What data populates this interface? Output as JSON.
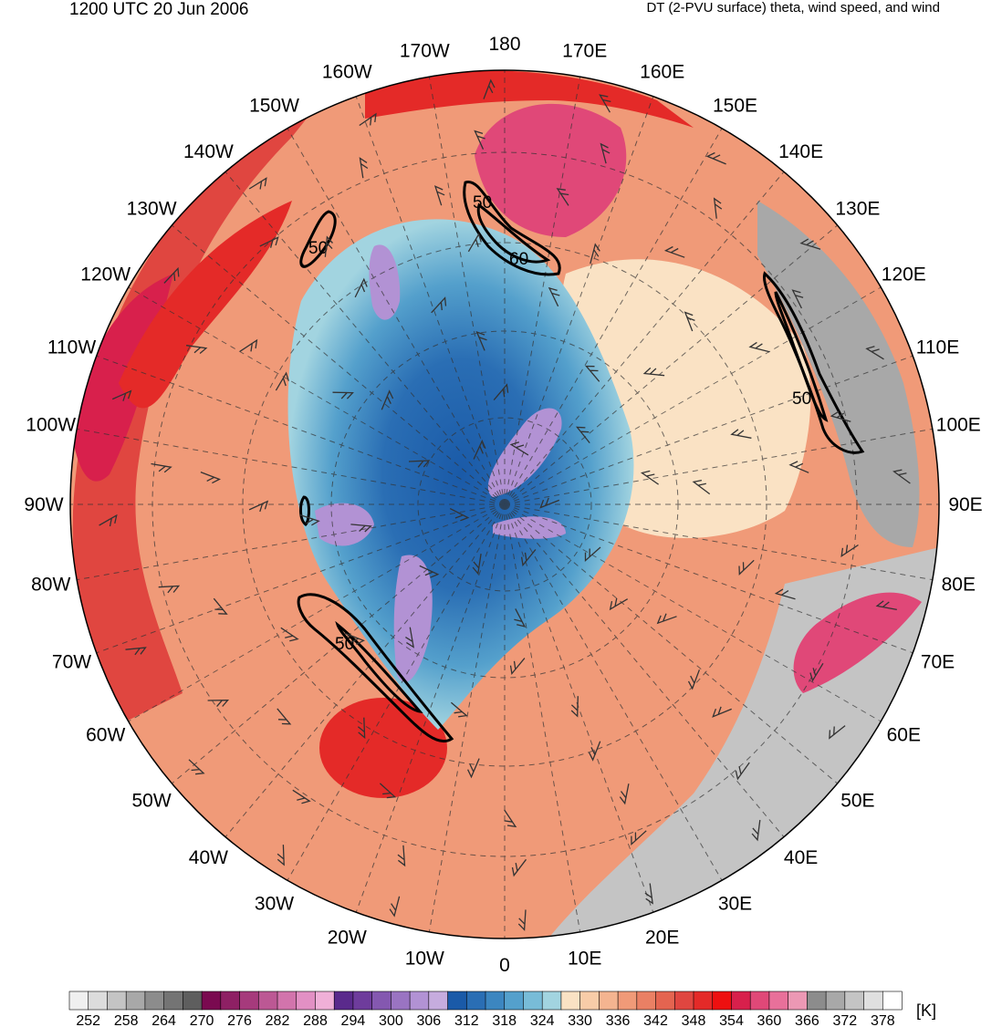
{
  "header": {
    "valid_time": "1200 UTC 20 Jun 2006",
    "field_description": "DT (2-PVU surface) theta, wind speed, and wind"
  },
  "map": {
    "projection": "north-polar-stereographic",
    "longitude_labels": [
      {
        "lon": 180,
        "text": "180"
      },
      {
        "lon": 170,
        "text": "170E"
      },
      {
        "lon": 160,
        "text": "160E"
      },
      {
        "lon": 150,
        "text": "150E"
      },
      {
        "lon": 140,
        "text": "140E"
      },
      {
        "lon": 130,
        "text": "130E"
      },
      {
        "lon": 120,
        "text": "120E"
      },
      {
        "lon": 110,
        "text": "110E"
      },
      {
        "lon": 100,
        "text": "100E"
      },
      {
        "lon": 90,
        "text": "90E"
      },
      {
        "lon": 80,
        "text": "80E"
      },
      {
        "lon": 70,
        "text": "70E"
      },
      {
        "lon": 60,
        "text": "60E"
      },
      {
        "lon": 50,
        "text": "50E"
      },
      {
        "lon": 40,
        "text": "40E"
      },
      {
        "lon": 30,
        "text": "30E"
      },
      {
        "lon": 20,
        "text": "20E"
      },
      {
        "lon": 10,
        "text": "10E"
      },
      {
        "lon": 0,
        "text": "0"
      },
      {
        "lon": -10,
        "text": "10W"
      },
      {
        "lon": -20,
        "text": "20W"
      },
      {
        "lon": -30,
        "text": "30W"
      },
      {
        "lon": -40,
        "text": "40W"
      },
      {
        "lon": -50,
        "text": "50W"
      },
      {
        "lon": -60,
        "text": "60W"
      },
      {
        "lon": -70,
        "text": "70W"
      },
      {
        "lon": -80,
        "text": "80W"
      },
      {
        "lon": -90,
        "text": "90W"
      },
      {
        "lon": -100,
        "text": "100W"
      },
      {
        "lon": -110,
        "text": "110W"
      },
      {
        "lon": -120,
        "text": "120W"
      },
      {
        "lon": -130,
        "text": "130W"
      },
      {
        "lon": -140,
        "text": "140W"
      },
      {
        "lon": -150,
        "text": "150W"
      },
      {
        "lon": -160,
        "text": "160W"
      },
      {
        "lon": -170,
        "text": "170W"
      }
    ],
    "wind_speed_contour_labels": [
      "50",
      "50",
      "60",
      "50",
      "50"
    ]
  },
  "colorbar": {
    "unit": "[K]",
    "levels": [
      252,
      255,
      258,
      261,
      264,
      267,
      270,
      273,
      276,
      279,
      282,
      285,
      288,
      291,
      294,
      297,
      300,
      303,
      306,
      309,
      312,
      315,
      318,
      321,
      324,
      327,
      330,
      333,
      336,
      339,
      342,
      345,
      348,
      351,
      354,
      357,
      360,
      363,
      366,
      369,
      372,
      375,
      378,
      381
    ],
    "colors": [
      "#f0f0f0",
      "#dcdcdc",
      "#c4c4c4",
      "#a8a8a8",
      "#8c8c8c",
      "#747474",
      "#5e5e5e",
      "#7a0a50",
      "#8e2064",
      "#a63a7c",
      "#bc5894",
      "#d274ac",
      "#e290c4",
      "#f0b0d8",
      "#5a2a8c",
      "#6e3c9c",
      "#8458b0",
      "#9a74c2",
      "#b292d4",
      "#c6acde",
      "#1a5aa8",
      "#2a6eb4",
      "#3c86c0",
      "#54a0cc",
      "#78bcd8",
      "#a2d4e0",
      "#fae2c4",
      "#f8cca8",
      "#f4b490",
      "#f09a78",
      "#ea8064",
      "#e46450",
      "#e04640",
      "#e42a28",
      "#ee1010",
      "#d8204c",
      "#e04878",
      "#e8709a",
      "#ec98b4",
      "#8c8c8c",
      "#a8a8a8",
      "#c4c4c4",
      "#e0e0e0",
      "#ffffff"
    ],
    "tick_labels": [
      "252",
      "258",
      "264",
      "270",
      "276",
      "282",
      "288",
      "294",
      "300",
      "306",
      "312",
      "318",
      "324",
      "330",
      "336",
      "342",
      "348",
      "354",
      "360",
      "366",
      "372",
      "378"
    ]
  }
}
